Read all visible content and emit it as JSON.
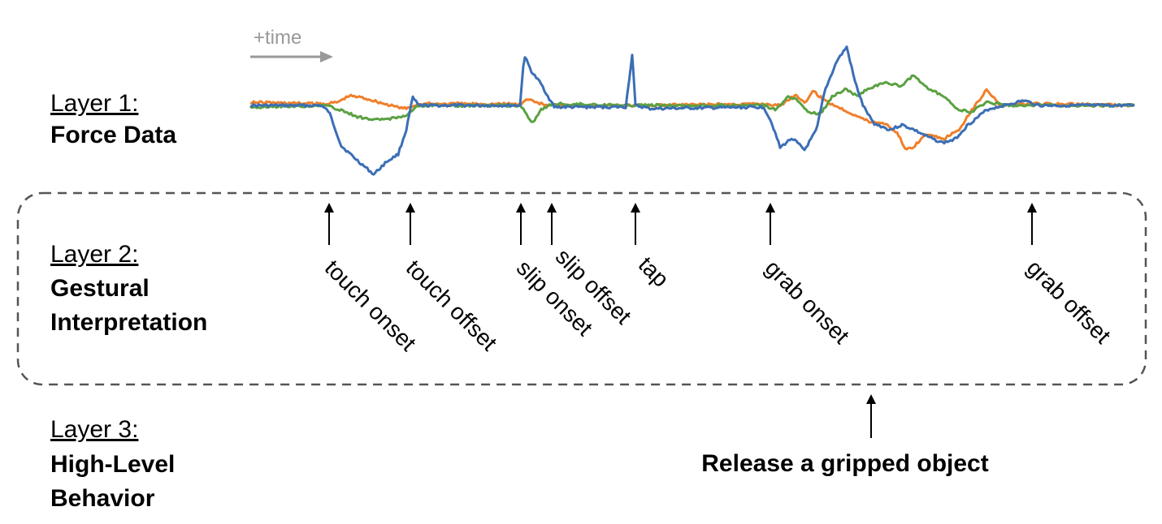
{
  "time_label": "+time",
  "layers": [
    {
      "title": "Layer 1:",
      "name_lines": [
        "Force Data"
      ]
    },
    {
      "title": "Layer 2:",
      "name_lines": [
        "Gestural",
        "Interpretation"
      ]
    },
    {
      "title": "Layer 3:",
      "name_lines": [
        "High-Level",
        "Behavior"
      ]
    }
  ],
  "gestures": [
    {
      "label": "touch onset"
    },
    {
      "label": "touch offset"
    },
    {
      "label": "slip onset"
    },
    {
      "label": "slip offset"
    },
    {
      "label": "tap"
    },
    {
      "label": "grab onset"
    },
    {
      "label": "grab offset"
    }
  ],
  "behavior": {
    "label": "Release a gripped object"
  },
  "colors": {
    "series_blue": "#3b6eb5",
    "series_orange": "#f07f2a",
    "series_green": "#5aa142",
    "arrow": "#000000",
    "time_arrow": "#999999",
    "dashed_box": "#555555"
  }
}
